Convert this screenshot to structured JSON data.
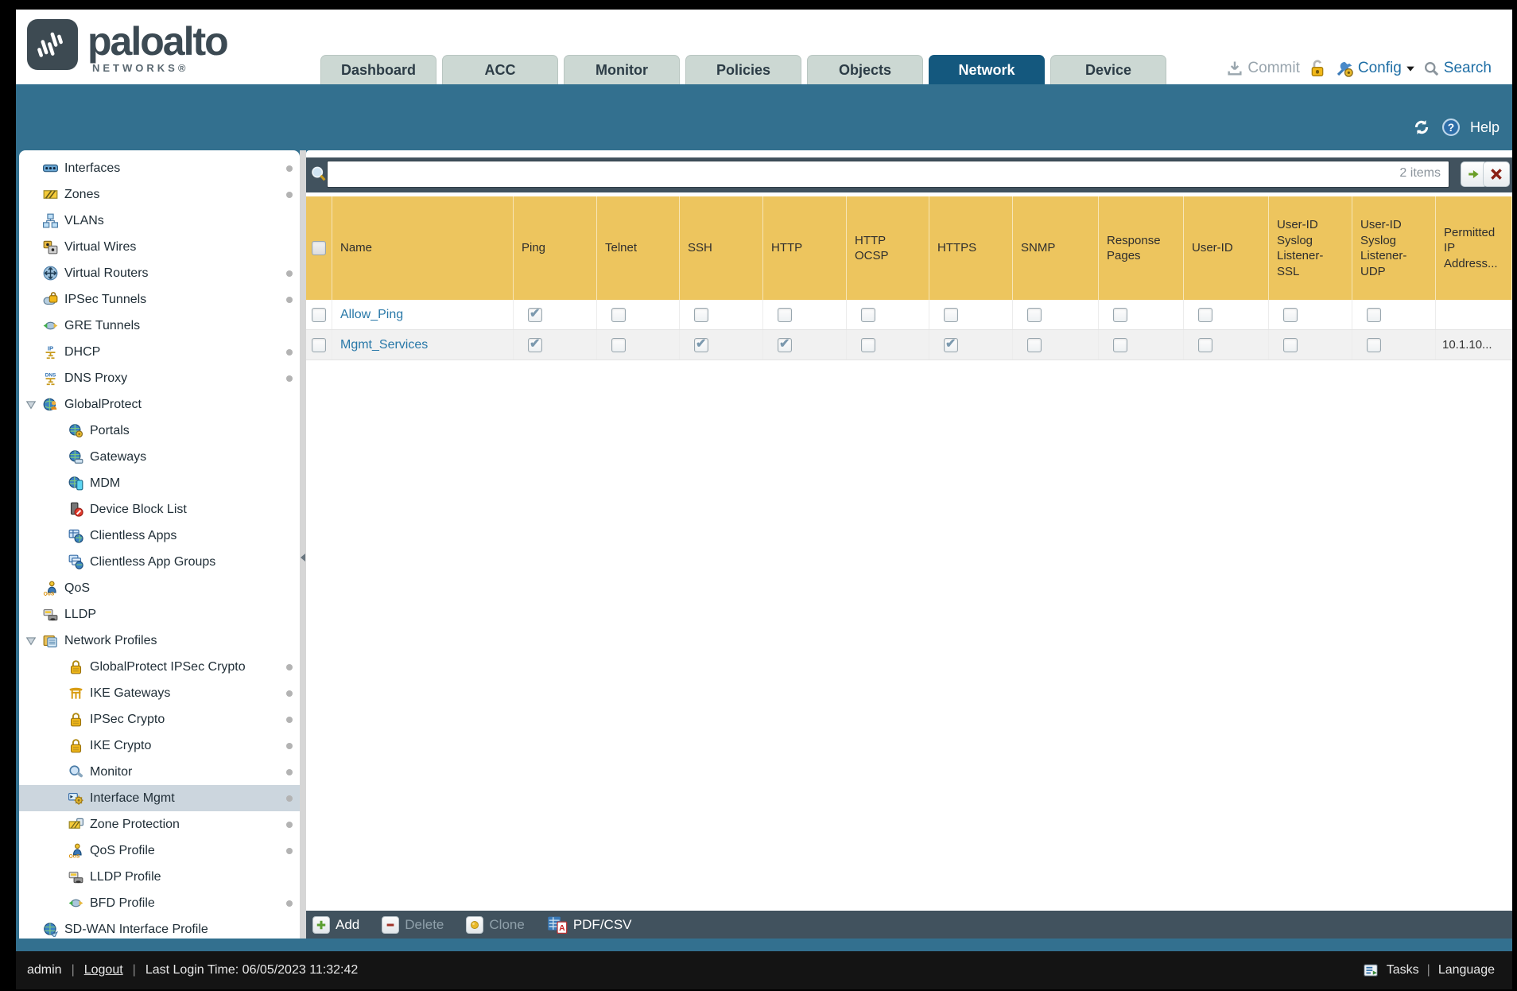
{
  "header": {
    "logo": {
      "text": "paloalto",
      "subtext": "NETWORKS®"
    },
    "tabs": [
      "Dashboard",
      "ACC",
      "Monitor",
      "Policies",
      "Objects",
      "Network",
      "Device"
    ],
    "active_tab": "Network",
    "actions": {
      "commit": "Commit",
      "config": "Config",
      "search": "Search"
    }
  },
  "band": {
    "help_label": "Help"
  },
  "sidebar": {
    "items": [
      {
        "label": "Interfaces",
        "icon": "interfaces-icon",
        "level": 0,
        "dot": true
      },
      {
        "label": "Zones",
        "icon": "zones-icon",
        "level": 0,
        "dot": true
      },
      {
        "label": "VLANs",
        "icon": "vlans-icon",
        "level": 0,
        "dot": false
      },
      {
        "label": "Virtual Wires",
        "icon": "virtual-wires-icon",
        "level": 0,
        "dot": false
      },
      {
        "label": "Virtual Routers",
        "icon": "virtual-routers-icon",
        "level": 0,
        "dot": true
      },
      {
        "label": "IPSec Tunnels",
        "icon": "ipsec-tunnels-icon",
        "level": 0,
        "dot": true
      },
      {
        "label": "GRE Tunnels",
        "icon": "gre-tunnels-icon",
        "level": 0,
        "dot": false
      },
      {
        "label": "DHCP",
        "icon": "dhcp-icon",
        "level": 0,
        "dot": true
      },
      {
        "label": "DNS Proxy",
        "icon": "dns-proxy-icon",
        "level": 0,
        "dot": true
      },
      {
        "label": "GlobalProtect",
        "icon": "globalprotect-icon",
        "level": 0,
        "dot": false,
        "expanded": true
      },
      {
        "label": "Portals",
        "icon": "portals-icon",
        "level": 1,
        "dot": false
      },
      {
        "label": "Gateways",
        "icon": "gateways-icon",
        "level": 1,
        "dot": false
      },
      {
        "label": "MDM",
        "icon": "mdm-icon",
        "level": 1,
        "dot": false
      },
      {
        "label": "Device Block List",
        "icon": "device-block-list-icon",
        "level": 1,
        "dot": false
      },
      {
        "label": "Clientless Apps",
        "icon": "clientless-apps-icon",
        "level": 1,
        "dot": false
      },
      {
        "label": "Clientless App Groups",
        "icon": "clientless-app-groups-icon",
        "level": 1,
        "dot": false
      },
      {
        "label": "QoS",
        "icon": "qos-icon",
        "level": 0,
        "dot": false
      },
      {
        "label": "LLDP",
        "icon": "lldp-icon",
        "level": 0,
        "dot": false
      },
      {
        "label": "Network Profiles",
        "icon": "network-profiles-icon",
        "level": 0,
        "dot": false,
        "expanded": true
      },
      {
        "label": "GlobalProtect IPSec Crypto",
        "icon": "lock-icon",
        "level": 1,
        "dot": true
      },
      {
        "label": "IKE Gateways",
        "icon": "ike-gateways-icon",
        "level": 1,
        "dot": true
      },
      {
        "label": "IPSec Crypto",
        "icon": "lock-icon",
        "level": 1,
        "dot": true
      },
      {
        "label": "IKE Crypto",
        "icon": "lock-icon",
        "level": 1,
        "dot": true
      },
      {
        "label": "Monitor",
        "icon": "monitor-icon",
        "level": 1,
        "dot": true
      },
      {
        "label": "Interface Mgmt",
        "icon": "interface-mgmt-icon",
        "level": 1,
        "dot": true,
        "selected": true
      },
      {
        "label": "Zone Protection",
        "icon": "zone-protection-icon",
        "level": 1,
        "dot": true
      },
      {
        "label": "QoS Profile",
        "icon": "qos-icon",
        "level": 1,
        "dot": true
      },
      {
        "label": "LLDP Profile",
        "icon": "lldp-icon",
        "level": 1,
        "dot": false
      },
      {
        "label": "BFD Profile",
        "icon": "bfd-profile-icon",
        "level": 1,
        "dot": true
      },
      {
        "label": "SD-WAN Interface Profile",
        "icon": "sd-wan-icon",
        "level": 0,
        "dot": false
      }
    ]
  },
  "search": {
    "value": "",
    "items_count": "2 items"
  },
  "table": {
    "columns": [
      {
        "id": "select",
        "label": "",
        "type": "checkbox"
      },
      {
        "id": "name",
        "label": "Name",
        "type": "link"
      },
      {
        "id": "ping",
        "label": "Ping",
        "type": "check"
      },
      {
        "id": "telnet",
        "label": "Telnet",
        "type": "check"
      },
      {
        "id": "ssh",
        "label": "SSH",
        "type": "check"
      },
      {
        "id": "http",
        "label": "HTTP",
        "type": "check"
      },
      {
        "id": "http_ocsp",
        "label": "HTTP OCSP",
        "type": "check"
      },
      {
        "id": "https",
        "label": "HTTPS",
        "type": "check"
      },
      {
        "id": "snmp",
        "label": "SNMP",
        "type": "check"
      },
      {
        "id": "response_pages",
        "label": "Response Pages",
        "type": "check"
      },
      {
        "id": "user_id",
        "label": "User-ID",
        "type": "check"
      },
      {
        "id": "user_id_syslog_ssl",
        "label": "User-ID Syslog Listener-SSL",
        "type": "check"
      },
      {
        "id": "user_id_syslog_udp",
        "label": "User-ID Syslog Listener-UDP",
        "type": "check"
      },
      {
        "id": "permitted_ip",
        "label": "Permitted IP Address...",
        "type": "text"
      }
    ],
    "rows": [
      {
        "name": "Allow_Ping",
        "ping": true,
        "telnet": false,
        "ssh": false,
        "http": false,
        "http_ocsp": false,
        "https": false,
        "snmp": false,
        "response_pages": false,
        "user_id": false,
        "user_id_syslog_ssl": false,
        "user_id_syslog_udp": false,
        "permitted_ip": ""
      },
      {
        "name": "Mgmt_Services",
        "ping": true,
        "telnet": false,
        "ssh": true,
        "http": true,
        "http_ocsp": false,
        "https": true,
        "snmp": false,
        "response_pages": false,
        "user_id": false,
        "user_id_syslog_ssl": false,
        "user_id_syslog_udp": false,
        "permitted_ip": "10.1.10..."
      }
    ]
  },
  "toolbar": {
    "buttons": [
      {
        "id": "add",
        "label": "Add",
        "icon": "add-icon",
        "enabled": true
      },
      {
        "id": "delete",
        "label": "Delete",
        "icon": "delete-icon",
        "enabled": false
      },
      {
        "id": "clone",
        "label": "Clone",
        "icon": "clone-icon",
        "enabled": false
      },
      {
        "id": "pdfcsv",
        "label": "PDF/CSV",
        "icon": "pdf-csv-icon",
        "enabled": true
      }
    ]
  },
  "footer": {
    "user": "admin",
    "separator": "|",
    "logout": "Logout",
    "last_login": "Last Login Time: 06/05/2023 11:32:42",
    "tasks": "Tasks",
    "language": "Language"
  },
  "colors": {
    "teal_band": "#33708f",
    "slate_strip": "#41525e",
    "table_header_gold": "#edc55e",
    "active_tab": "#14587e",
    "link_blue": "#2878a8",
    "footer_bg": "#141414"
  }
}
